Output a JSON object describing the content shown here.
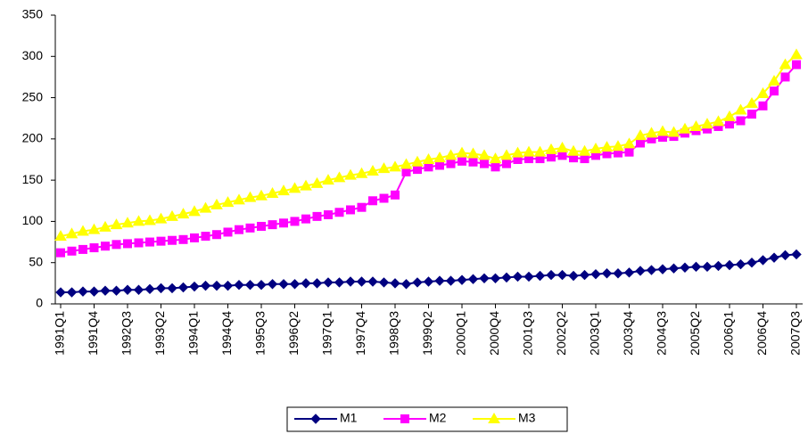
{
  "chart_data": {
    "type": "line",
    "categories": [
      "1991Q1",
      null,
      null,
      "1991Q4",
      null,
      null,
      "1992Q3",
      null,
      null,
      "1993Q2",
      null,
      null,
      "1994Q1",
      null,
      null,
      "1994Q4",
      null,
      null,
      "1995Q3",
      null,
      null,
      "1996Q2",
      null,
      null,
      "1997Q1",
      null,
      null,
      "1997Q4",
      null,
      null,
      "1998Q3",
      null,
      null,
      "1999Q2",
      null,
      null,
      "2000Q1",
      null,
      null,
      "2000Q4",
      null,
      null,
      "2001Q3",
      null,
      null,
      "2002Q2",
      null,
      null,
      "2003Q1",
      null,
      null,
      "2003Q4",
      null,
      null,
      "2004Q3",
      null,
      null,
      "2005Q2",
      null,
      null,
      "2006Q1",
      null,
      null,
      "2006Q4",
      null,
      null,
      "2007Q3"
    ],
    "series": [
      {
        "name": "M1",
        "color": "#000080",
        "marker": "diamond",
        "values": [
          14,
          14,
          15,
          15,
          16,
          16,
          17,
          17,
          18,
          19,
          19,
          20,
          21,
          22,
          22,
          22,
          23,
          23,
          23,
          24,
          24,
          24,
          25,
          25,
          26,
          26,
          27,
          27,
          27,
          26,
          25,
          24,
          26,
          27,
          28,
          28,
          29,
          30,
          31,
          31,
          32,
          33,
          33,
          34,
          35,
          35,
          34,
          35,
          36,
          37,
          37,
          38,
          40,
          41,
          42,
          43,
          44,
          45,
          45,
          46,
          47,
          48,
          50,
          53,
          56,
          59,
          60
        ]
      },
      {
        "name": "M2",
        "color": "#ff00ff",
        "marker": "square",
        "values": [
          62,
          64,
          66,
          68,
          70,
          72,
          73,
          74,
          75,
          76,
          77,
          78,
          80,
          82,
          84,
          87,
          90,
          92,
          94,
          96,
          98,
          100,
          103,
          106,
          108,
          111,
          114,
          117,
          125,
          128,
          132,
          160,
          163,
          166,
          168,
          170,
          173,
          172,
          170,
          166,
          170,
          175,
          176,
          176,
          178,
          180,
          177,
          176,
          180,
          182,
          183,
          184,
          195,
          200,
          202,
          203,
          207,
          210,
          212,
          215,
          218,
          222,
          230,
          240,
          258,
          275,
          290
        ]
      },
      {
        "name": "M3",
        "color": "#ffff00",
        "marker": "triangle",
        "values": [
          82,
          85,
          88,
          90,
          93,
          96,
          98,
          100,
          101,
          103,
          106,
          109,
          112,
          116,
          120,
          123,
          126,
          129,
          131,
          134,
          137,
          140,
          143,
          146,
          150,
          153,
          156,
          158,
          161,
          164,
          166,
          169,
          172,
          175,
          177,
          180,
          183,
          182,
          180,
          176,
          180,
          183,
          184,
          184,
          187,
          189,
          185,
          185,
          188,
          190,
          191,
          194,
          204,
          207,
          209,
          208,
          212,
          215,
          218,
          221,
          227,
          235,
          243,
          255,
          270,
          290,
          302
        ]
      }
    ],
    "ylim": [
      0,
      350
    ],
    "yticks": [
      0,
      50,
      100,
      150,
      200,
      250,
      300,
      350
    ],
    "grid": false
  }
}
